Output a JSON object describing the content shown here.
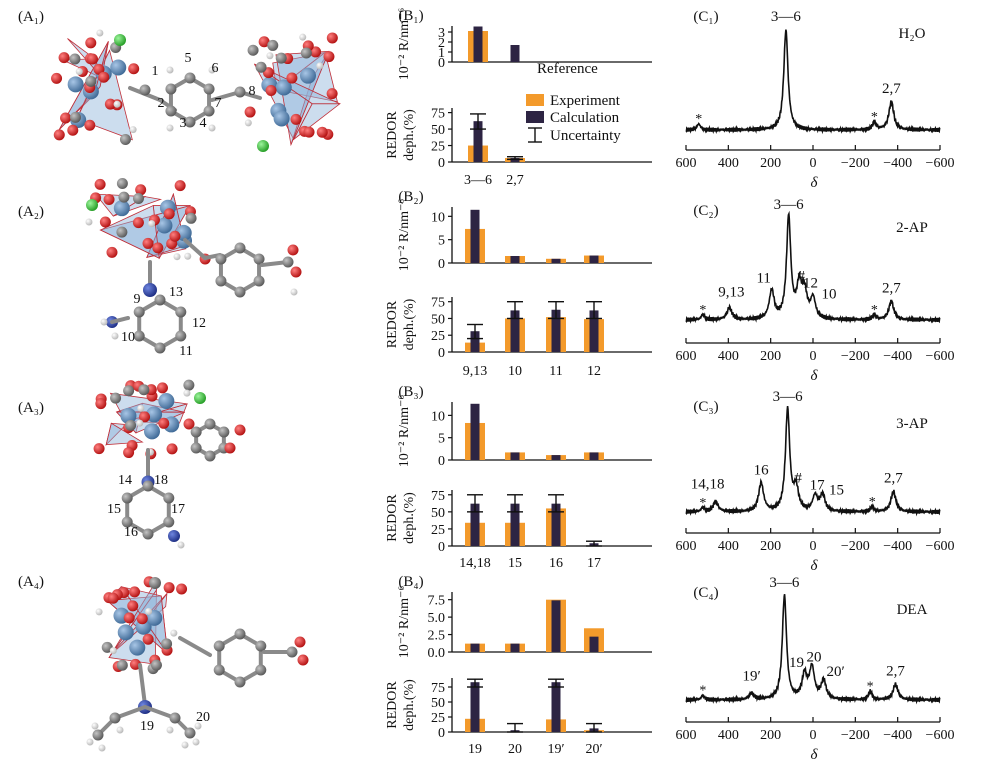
{
  "colors": {
    "experiment": "#F39A2B",
    "calculation": "#2D2443",
    "oxygen": "#DD1C1C",
    "carbon": "#7E7E7E",
    "zr": "#5A86B5",
    "poly": "#8FB3D9",
    "chlorine": "#3CC03C",
    "nitrogen": "#2B3FA0",
    "hydrogen": "#F0F0F0",
    "axis": "#111111"
  },
  "panels_A": [
    {
      "label": "(A₁)",
      "atoms": [
        "1",
        "2",
        "3",
        "4",
        "5",
        "6",
        "7",
        "8"
      ]
    },
    {
      "label": "(A₂)",
      "atoms": [
        "9",
        "13",
        "12",
        "10",
        "11"
      ]
    },
    {
      "label": "(A₃)",
      "atoms": [
        "14",
        "18",
        "15",
        "17",
        "16"
      ]
    },
    {
      "label": "(A₄)",
      "atoms": [
        "19",
        "20"
      ]
    }
  ],
  "legend": {
    "experiment": "Experiment",
    "calculation": "Calculation",
    "uncertainty": "Uncertainty"
  },
  "reference_label": "Reference",
  "r_ylabel": "10⁻² R/nm⁻⁶",
  "redor_ylabel_1": "REDOR",
  "redor_ylabel_2": "deph.(%)",
  "spectrum_xlabel": "δ",
  "chart_data": [
    {
      "type": "bar",
      "panel": "(B₁)",
      "title": "",
      "categories": [
        "3—6",
        "2,7"
      ],
      "r": {
        "yticks": [
          0,
          1,
          2,
          3
        ],
        "ylim": [
          0,
          3.6
        ],
        "experiment": [
          3.1,
          null
        ],
        "calculation": [
          3.55,
          1.7
        ]
      },
      "redor": {
        "yticks": [
          0,
          25,
          50,
          75
        ],
        "ylim": [
          0,
          82
        ],
        "experiment": [
          25,
          6
        ],
        "calculation": [
          62,
          6
        ],
        "uncertainty": [
          [
            50,
            73
          ],
          [
            4,
            8
          ]
        ]
      }
    },
    {
      "type": "bar",
      "panel": "(B₂)",
      "title": "",
      "categories": [
        "9,13",
        "10",
        "11",
        "12"
      ],
      "r": {
        "yticks": [
          0,
          5,
          10
        ],
        "ylim": [
          0,
          12
        ],
        "experiment": [
          7.3,
          1.5,
          0.9,
          1.6
        ],
        "calculation": [
          11.4,
          1.5,
          0.9,
          1.6
        ]
      },
      "redor": {
        "yticks": [
          0,
          25,
          50,
          75
        ],
        "ylim": [
          0,
          82
        ],
        "experiment": [
          14,
          50,
          52,
          49
        ],
        "calculation": [
          31,
          62,
          63,
          62
        ],
        "uncertainty": [
          [
            20,
            41
          ],
          [
            50,
            75
          ],
          [
            50,
            75
          ],
          [
            50,
            75
          ]
        ]
      }
    },
    {
      "type": "bar",
      "panel": "(B₃)",
      "title": "",
      "categories": [
        "14,18",
        "15",
        "16",
        "17"
      ],
      "r": {
        "yticks": [
          0,
          5,
          10
        ],
        "ylim": [
          0,
          13
        ],
        "experiment": [
          8.3,
          1.7,
          1.1,
          1.7
        ],
        "calculation": [
          12.6,
          1.7,
          1.1,
          1.7
        ]
      },
      "redor": {
        "yticks": [
          0,
          25,
          50,
          75
        ],
        "ylim": [
          0,
          82
        ],
        "experiment": [
          34,
          34,
          55,
          0
        ],
        "calculation": [
          62,
          62,
          62,
          4
        ],
        "uncertainty": [
          [
            50,
            75
          ],
          [
            50,
            75
          ],
          [
            50,
            75
          ],
          [
            0,
            7
          ]
        ]
      }
    },
    {
      "type": "bar",
      "panel": "(B₄)",
      "title": "",
      "categories": [
        "19",
        "20",
        "19′",
        "20′"
      ],
      "r": {
        "yticks": [
          0.0,
          2.5,
          5.0,
          7.5
        ],
        "ylim": [
          0,
          8.6
        ],
        "experiment": [
          1.2,
          1.2,
          7.5,
          3.4
        ],
        "calculation": [
          1.2,
          1.2,
          7.4,
          2.2
        ],
        "ytick_labels": [
          "0.0",
          "2.5",
          "5.0",
          "7.5"
        ]
      },
      "redor": {
        "yticks": [
          0,
          25,
          50,
          75
        ],
        "ylim": [
          0,
          90
        ],
        "experiment": [
          22,
          0,
          21,
          3
        ],
        "calculation": [
          83,
          3,
          83,
          6
        ],
        "uncertainty": [
          [
            75,
            88
          ],
          [
            0,
            14
          ],
          [
            75,
            88
          ],
          [
            0,
            14
          ]
        ]
      }
    },
    {
      "type": "line",
      "panel": "(C₁)",
      "sample": "H₂O",
      "x": [
        600,
        400,
        200,
        0,
        -200,
        -400,
        -600
      ],
      "xlim": [
        600,
        -600
      ],
      "peaks": [
        {
          "label": "3—6",
          "x": 128,
          "h": 1.0
        },
        {
          "label": "2,7",
          "x": -370,
          "h": 0.28
        },
        {
          "label": "*",
          "x": 540,
          "h": 0.06
        },
        {
          "label": "*",
          "x": -290,
          "h": 0.08
        }
      ]
    },
    {
      "type": "line",
      "panel": "(C₂)",
      "sample": "2-AP",
      "x": [
        600,
        400,
        200,
        0,
        -200,
        -400,
        -600
      ],
      "xlim": [
        600,
        -600
      ],
      "peaks": [
        {
          "label": "3—6",
          "x": 115,
          "h": 1.0
        },
        {
          "label": "11",
          "x": 195,
          "h": 0.28
        },
        {
          "label": "#",
          "x": 65,
          "h": 0.32
        },
        {
          "label": "12",
          "x": 40,
          "h": 0.25
        },
        {
          "label": "10",
          "x": 0,
          "h": 0.2
        },
        {
          "label": "9,13",
          "x": 395,
          "h": 0.12
        },
        {
          "label": "2,7",
          "x": -370,
          "h": 0.18
        },
        {
          "label": "*",
          "x": 520,
          "h": 0.05
        },
        {
          "label": "*",
          "x": -290,
          "h": 0.05
        }
      ]
    },
    {
      "type": "line",
      "panel": "(C₃)",
      "sample": "3-AP",
      "x": [
        600,
        400,
        200,
        0,
        -200,
        -400,
        -600
      ],
      "xlim": [
        600,
        -600
      ],
      "peaks": [
        {
          "label": "3—6",
          "x": 120,
          "h": 1.0
        },
        {
          "label": "16",
          "x": 245,
          "h": 0.28
        },
        {
          "label": "#",
          "x": 80,
          "h": 0.22
        },
        {
          "label": "17",
          "x": -10,
          "h": 0.15
        },
        {
          "label": "15",
          "x": -45,
          "h": 0.16
        },
        {
          "label": "14,18",
          "x": 460,
          "h": 0.1
        },
        {
          "label": "2,7",
          "x": -380,
          "h": 0.2
        },
        {
          "label": "*",
          "x": 520,
          "h": 0.04
        },
        {
          "label": "*",
          "x": -280,
          "h": 0.05
        }
      ]
    },
    {
      "type": "line",
      "panel": "(C₄)",
      "sample": "DEA",
      "x": [
        600,
        400,
        200,
        0,
        -200,
        -400,
        -600
      ],
      "xlim": [
        600,
        -600
      ],
      "peaks": [
        {
          "label": "3—6",
          "x": 135,
          "h": 1.0
        },
        {
          "label": "19",
          "x": 40,
          "h": 0.23
        },
        {
          "label": "20",
          "x": 5,
          "h": 0.3
        },
        {
          "label": "20′",
          "x": -50,
          "h": 0.18
        },
        {
          "label": "19′",
          "x": 290,
          "h": 0.06
        },
        {
          "label": "2,7",
          "x": -390,
          "h": 0.15
        },
        {
          "label": "*",
          "x": 520,
          "h": 0.04
        },
        {
          "label": "*",
          "x": -270,
          "h": 0.08
        }
      ]
    }
  ]
}
